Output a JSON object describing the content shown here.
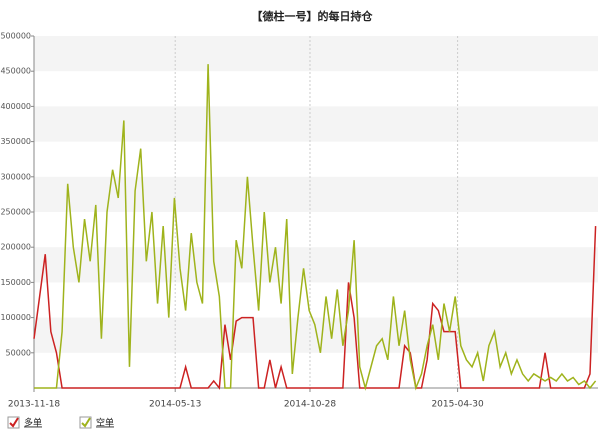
{
  "chart_data": {
    "type": "line",
    "title": "【德柱一号】的每日持仓",
    "x": [
      "2013-11-18",
      "2013-11-25",
      "2013-12-02",
      "2013-12-09",
      "2013-12-16",
      "2013-12-23",
      "2013-12-30",
      "2014-01-06",
      "2014-01-13",
      "2014-01-20",
      "2014-01-27",
      "2014-02-03",
      "2014-02-10",
      "2014-02-17",
      "2014-02-24",
      "2014-03-03",
      "2014-03-10",
      "2014-03-17",
      "2014-03-24",
      "2014-03-31",
      "2014-04-07",
      "2014-04-14",
      "2014-04-21",
      "2014-04-28",
      "2014-05-05",
      "2014-05-12",
      "2014-05-19",
      "2014-05-26",
      "2014-06-02",
      "2014-06-09",
      "2014-06-16",
      "2014-06-23",
      "2014-06-30",
      "2014-07-07",
      "2014-07-14",
      "2014-07-21",
      "2014-07-28",
      "2014-08-04",
      "2014-08-11",
      "2014-08-18",
      "2014-08-25",
      "2014-09-01",
      "2014-09-08",
      "2014-09-15",
      "2014-09-22",
      "2014-09-29",
      "2014-10-06",
      "2014-10-13",
      "2014-10-20",
      "2014-10-27",
      "2014-11-03",
      "2014-11-10",
      "2014-11-17",
      "2014-11-24",
      "2014-12-01",
      "2014-12-08",
      "2014-12-15",
      "2014-12-22",
      "2014-12-29",
      "2015-01-05",
      "2015-01-12",
      "2015-01-19",
      "2015-01-26",
      "2015-02-02",
      "2015-02-09",
      "2015-02-16",
      "2015-02-23",
      "2015-03-02",
      "2015-03-09",
      "2015-03-16",
      "2015-03-23",
      "2015-03-30",
      "2015-04-06",
      "2015-04-13",
      "2015-04-20",
      "2015-04-27",
      "2015-05-04",
      "2015-05-11",
      "2015-05-18",
      "2015-05-25",
      "2015-06-01",
      "2015-06-08",
      "2015-06-15",
      "2015-06-22",
      "2015-06-29",
      "2015-07-06",
      "2015-07-13",
      "2015-07-20",
      "2015-07-27",
      "2015-08-03",
      "2015-08-10",
      "2015-08-17",
      "2015-08-24",
      "2015-08-31",
      "2015-09-07",
      "2015-09-14",
      "2015-09-21",
      "2015-09-28",
      "2015-10-05",
      "2015-10-12",
      "2015-10-19"
    ],
    "series": [
      {
        "name": "多单",
        "color": "#cc2222",
        "values": [
          70000,
          130000,
          190000,
          80000,
          50000,
          0,
          0,
          0,
          0,
          0,
          0,
          0,
          0,
          0,
          0,
          0,
          0,
          0,
          0,
          0,
          0,
          0,
          0,
          0,
          0,
          0,
          0,
          30000,
          0,
          0,
          0,
          0,
          10000,
          0,
          90000,
          40000,
          95000,
          100000,
          100000,
          100000,
          0,
          0,
          40000,
          0,
          30000,
          0,
          0,
          0,
          0,
          0,
          0,
          0,
          0,
          0,
          0,
          0,
          150000,
          100000,
          0,
          0,
          0,
          0,
          0,
          0,
          0,
          0,
          60000,
          50000,
          0,
          0,
          40000,
          120000,
          110000,
          80000,
          80000,
          80000,
          0,
          0,
          0,
          0,
          0,
          0,
          0,
          0,
          0,
          0,
          0,
          0,
          0,
          0,
          0,
          50000,
          0,
          0,
          0,
          0,
          0,
          0,
          0,
          20000,
          230000
        ]
      },
      {
        "name": "空单",
        "color": "#9fb31c",
        "values": [
          0,
          0,
          0,
          0,
          0,
          80000,
          290000,
          200000,
          150000,
          240000,
          180000,
          260000,
          70000,
          250000,
          310000,
          270000,
          380000,
          30000,
          280000,
          340000,
          180000,
          250000,
          120000,
          230000,
          100000,
          270000,
          170000,
          110000,
          220000,
          150000,
          120000,
          460000,
          180000,
          130000,
          0,
          0,
          210000,
          170000,
          300000,
          200000,
          110000,
          250000,
          150000,
          200000,
          120000,
          240000,
          20000,
          100000,
          170000,
          110000,
          90000,
          50000,
          130000,
          70000,
          140000,
          60000,
          110000,
          210000,
          30000,
          0,
          30000,
          60000,
          70000,
          40000,
          130000,
          60000,
          110000,
          40000,
          0,
          20000,
          60000,
          90000,
          40000,
          120000,
          80000,
          130000,
          60000,
          40000,
          30000,
          50000,
          10000,
          60000,
          80000,
          30000,
          50000,
          20000,
          40000,
          20000,
          10000,
          20000,
          15000,
          10000,
          15000,
          10000,
          20000,
          10000,
          15000,
          5000,
          10000,
          0,
          10000
        ]
      }
    ],
    "xlim": [
      "2013-11-18",
      "2015-10-22"
    ],
    "xticks": [
      "2013-11-18",
      "2014-05-13",
      "2014-10-28",
      "2015-04-30"
    ],
    "ylim": [
      0,
      500000
    ],
    "yticks": [
      50000,
      100000,
      150000,
      200000,
      250000,
      300000,
      350000,
      400000,
      450000,
      500000
    ],
    "grid": true
  }
}
